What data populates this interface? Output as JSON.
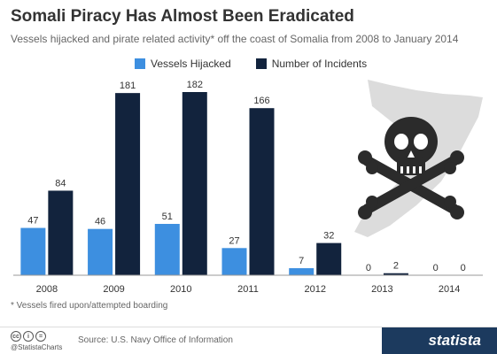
{
  "header": {
    "title": "Somali Piracy Has Almost Been Eradicated",
    "subtitle": "Vessels hijacked and pirate related activity* off the coast of Somalia from 2008 to January 2014"
  },
  "footer": {
    "footnote": "* Vessels fired upon/attempted boarding",
    "handle": "@StatistaCharts",
    "source": "Source: U.S. Navy Office of Information",
    "brand": "statista",
    "cc_icons": [
      "cc-icon",
      "by-icon",
      "nd-icon"
    ]
  },
  "colors": {
    "hijacked": "#3d8fe0",
    "incidents": "#12233d",
    "axis": "#999999",
    "label": "#333333",
    "map": "#dcdcdc",
    "skull": "#2b2b2b"
  },
  "chart_data": {
    "type": "bar",
    "title": "Somali Piracy Has Almost Been Eradicated",
    "subtitle": "Vessels hijacked and pirate related activity* off the coast of Somalia from 2008 to January 2014",
    "categories": [
      "2008",
      "2009",
      "2010",
      "2011",
      "2012",
      "2013",
      "2014"
    ],
    "series": [
      {
        "name": "Vessels Hijacked",
        "values": [
          47,
          46,
          51,
          27,
          7,
          0,
          0
        ]
      },
      {
        "name": "Number of Incidents",
        "values": [
          84,
          181,
          182,
          166,
          32,
          2,
          0
        ]
      }
    ],
    "ylim": [
      0,
      190
    ],
    "grid": false,
    "legend": "top-left",
    "xlabel": "",
    "ylabel": ""
  }
}
